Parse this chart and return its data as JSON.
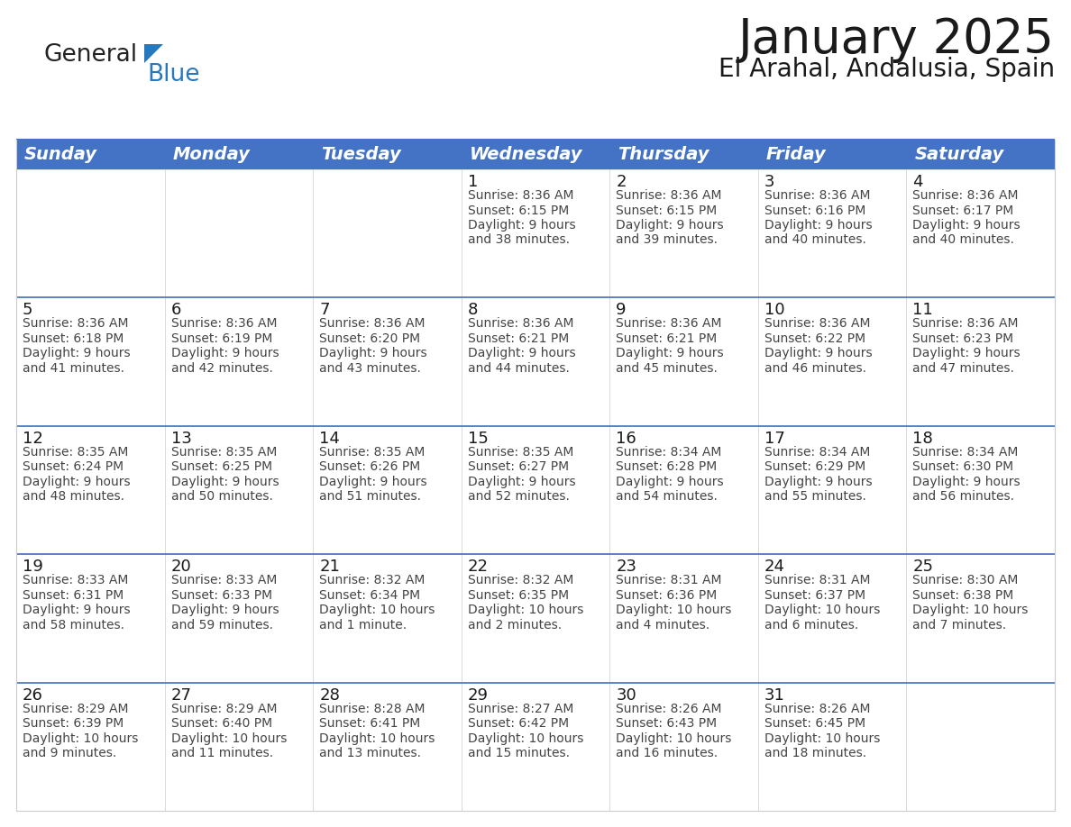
{
  "title": "January 2025",
  "subtitle": "El Arahal, Andalusia, Spain",
  "header_color": "#4472C4",
  "header_text_color": "#FFFFFF",
  "cell_bg_color": "#FFFFFF",
  "alt_cell_bg_color": "#F0F0F0",
  "separator_color": "#4472C4",
  "cell_border_color": "#CCCCCC",
  "day_headers": [
    "Sunday",
    "Monday",
    "Tuesday",
    "Wednesday",
    "Thursday",
    "Friday",
    "Saturday"
  ],
  "calendar_data": [
    [
      {
        "day": "",
        "info": ""
      },
      {
        "day": "",
        "info": ""
      },
      {
        "day": "",
        "info": ""
      },
      {
        "day": "1",
        "info": "Sunrise: 8:36 AM\nSunset: 6:15 PM\nDaylight: 9 hours\nand 38 minutes."
      },
      {
        "day": "2",
        "info": "Sunrise: 8:36 AM\nSunset: 6:15 PM\nDaylight: 9 hours\nand 39 minutes."
      },
      {
        "day": "3",
        "info": "Sunrise: 8:36 AM\nSunset: 6:16 PM\nDaylight: 9 hours\nand 40 minutes."
      },
      {
        "day": "4",
        "info": "Sunrise: 8:36 AM\nSunset: 6:17 PM\nDaylight: 9 hours\nand 40 minutes."
      }
    ],
    [
      {
        "day": "5",
        "info": "Sunrise: 8:36 AM\nSunset: 6:18 PM\nDaylight: 9 hours\nand 41 minutes."
      },
      {
        "day": "6",
        "info": "Sunrise: 8:36 AM\nSunset: 6:19 PM\nDaylight: 9 hours\nand 42 minutes."
      },
      {
        "day": "7",
        "info": "Sunrise: 8:36 AM\nSunset: 6:20 PM\nDaylight: 9 hours\nand 43 minutes."
      },
      {
        "day": "8",
        "info": "Sunrise: 8:36 AM\nSunset: 6:21 PM\nDaylight: 9 hours\nand 44 minutes."
      },
      {
        "day": "9",
        "info": "Sunrise: 8:36 AM\nSunset: 6:21 PM\nDaylight: 9 hours\nand 45 minutes."
      },
      {
        "day": "10",
        "info": "Sunrise: 8:36 AM\nSunset: 6:22 PM\nDaylight: 9 hours\nand 46 minutes."
      },
      {
        "day": "11",
        "info": "Sunrise: 8:36 AM\nSunset: 6:23 PM\nDaylight: 9 hours\nand 47 minutes."
      }
    ],
    [
      {
        "day": "12",
        "info": "Sunrise: 8:35 AM\nSunset: 6:24 PM\nDaylight: 9 hours\nand 48 minutes."
      },
      {
        "day": "13",
        "info": "Sunrise: 8:35 AM\nSunset: 6:25 PM\nDaylight: 9 hours\nand 50 minutes."
      },
      {
        "day": "14",
        "info": "Sunrise: 8:35 AM\nSunset: 6:26 PM\nDaylight: 9 hours\nand 51 minutes."
      },
      {
        "day": "15",
        "info": "Sunrise: 8:35 AM\nSunset: 6:27 PM\nDaylight: 9 hours\nand 52 minutes."
      },
      {
        "day": "16",
        "info": "Sunrise: 8:34 AM\nSunset: 6:28 PM\nDaylight: 9 hours\nand 54 minutes."
      },
      {
        "day": "17",
        "info": "Sunrise: 8:34 AM\nSunset: 6:29 PM\nDaylight: 9 hours\nand 55 minutes."
      },
      {
        "day": "18",
        "info": "Sunrise: 8:34 AM\nSunset: 6:30 PM\nDaylight: 9 hours\nand 56 minutes."
      }
    ],
    [
      {
        "day": "19",
        "info": "Sunrise: 8:33 AM\nSunset: 6:31 PM\nDaylight: 9 hours\nand 58 minutes."
      },
      {
        "day": "20",
        "info": "Sunrise: 8:33 AM\nSunset: 6:33 PM\nDaylight: 9 hours\nand 59 minutes."
      },
      {
        "day": "21",
        "info": "Sunrise: 8:32 AM\nSunset: 6:34 PM\nDaylight: 10 hours\nand 1 minute."
      },
      {
        "day": "22",
        "info": "Sunrise: 8:32 AM\nSunset: 6:35 PM\nDaylight: 10 hours\nand 2 minutes."
      },
      {
        "day": "23",
        "info": "Sunrise: 8:31 AM\nSunset: 6:36 PM\nDaylight: 10 hours\nand 4 minutes."
      },
      {
        "day": "24",
        "info": "Sunrise: 8:31 AM\nSunset: 6:37 PM\nDaylight: 10 hours\nand 6 minutes."
      },
      {
        "day": "25",
        "info": "Sunrise: 8:30 AM\nSunset: 6:38 PM\nDaylight: 10 hours\nand 7 minutes."
      }
    ],
    [
      {
        "day": "26",
        "info": "Sunrise: 8:29 AM\nSunset: 6:39 PM\nDaylight: 10 hours\nand 9 minutes."
      },
      {
        "day": "27",
        "info": "Sunrise: 8:29 AM\nSunset: 6:40 PM\nDaylight: 10 hours\nand 11 minutes."
      },
      {
        "day": "28",
        "info": "Sunrise: 8:28 AM\nSunset: 6:41 PM\nDaylight: 10 hours\nand 13 minutes."
      },
      {
        "day": "29",
        "info": "Sunrise: 8:27 AM\nSunset: 6:42 PM\nDaylight: 10 hours\nand 15 minutes."
      },
      {
        "day": "30",
        "info": "Sunrise: 8:26 AM\nSunset: 6:43 PM\nDaylight: 10 hours\nand 16 minutes."
      },
      {
        "day": "31",
        "info": "Sunrise: 8:26 AM\nSunset: 6:45 PM\nDaylight: 10 hours\nand 18 minutes."
      },
      {
        "day": "",
        "info": ""
      }
    ]
  ],
  "logo_general_color": "#222222",
  "logo_blue_color": "#2878BE",
  "logo_triangle_color": "#2878BE",
  "title_fontsize": 38,
  "subtitle_fontsize": 20,
  "header_fontsize": 14,
  "day_num_fontsize": 13,
  "info_fontsize": 10
}
